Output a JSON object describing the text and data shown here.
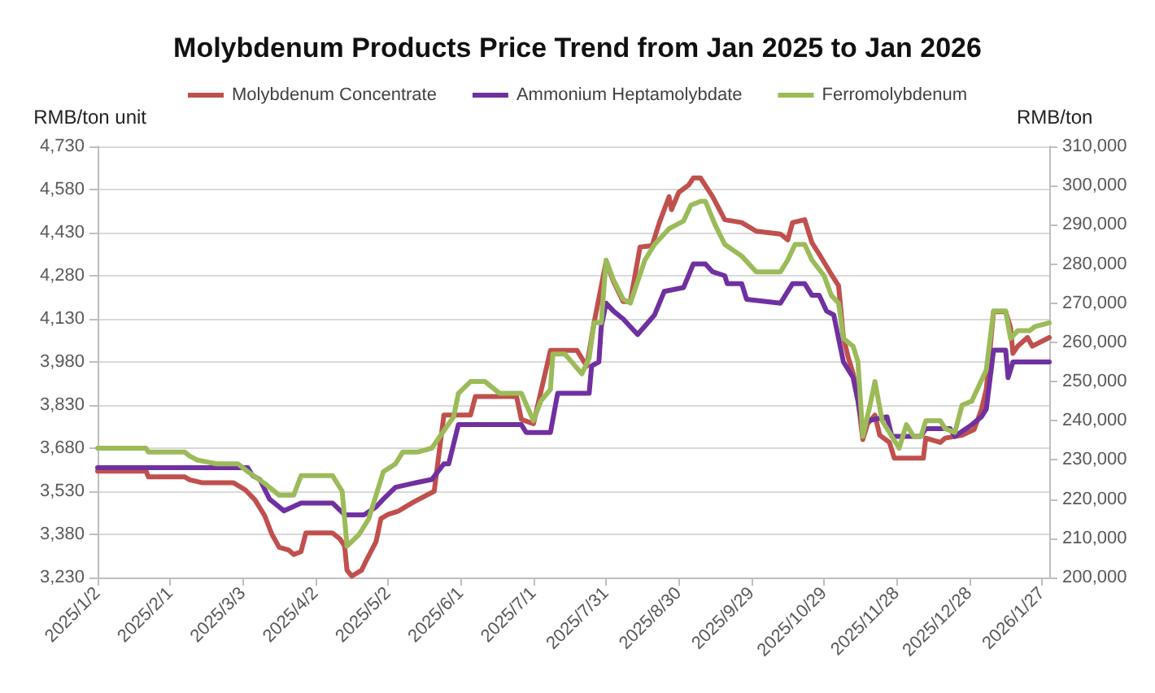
{
  "chart_data": {
    "type": "line",
    "title": "Molybdenum Products Price Trend from Jan 2025 to Jan 2026",
    "ylabel": "RMB/ton unit",
    "y2label": "RMB/ton",
    "xlim": [
      "2025-01-02",
      "2026-01-30"
    ],
    "xticks": [
      {
        "value": "2025-01-02",
        "label": "2025/1/2"
      },
      {
        "value": "2025-02-01",
        "label": "2025/2/1"
      },
      {
        "value": "2025-03-03",
        "label": "2025/3/3"
      },
      {
        "value": "2025-04-02",
        "label": "2025/4/2"
      },
      {
        "value": "2025-05-02",
        "label": "2025/5/2"
      },
      {
        "value": "2025-06-01",
        "label": "2025/6/1"
      },
      {
        "value": "2025-07-01",
        "label": "2025/7/1"
      },
      {
        "value": "2025-07-31",
        "label": "2025/7/31"
      },
      {
        "value": "2025-08-30",
        "label": "2025/8/30"
      },
      {
        "value": "2025-09-29",
        "label": "2025/9/29"
      },
      {
        "value": "2025-10-29",
        "label": "2025/10/29"
      },
      {
        "value": "2025-11-28",
        "label": "2025/11/28"
      },
      {
        "value": "2025-12-28",
        "label": "2025/12/28"
      },
      {
        "value": "2026-01-27",
        "label": "2026/1/27"
      }
    ],
    "ylim": [
      3230,
      4730
    ],
    "yticks": [
      {
        "value": 3230,
        "label": "3,230"
      },
      {
        "value": 3380,
        "label": "3,380"
      },
      {
        "value": 3530,
        "label": "3,530"
      },
      {
        "value": 3680,
        "label": "3,680"
      },
      {
        "value": 3830,
        "label": "3,830"
      },
      {
        "value": 3980,
        "label": "3,980"
      },
      {
        "value": 4130,
        "label": "4,130"
      },
      {
        "value": 4280,
        "label": "4,280"
      },
      {
        "value": 4430,
        "label": "4,430"
      },
      {
        "value": 4580,
        "label": "4,580"
      },
      {
        "value": 4730,
        "label": "4,730"
      }
    ],
    "y2lim": [
      200000,
      310000
    ],
    "y2ticks": [
      {
        "value": 200000,
        "label": "200,000"
      },
      {
        "value": 210000,
        "label": "210,000"
      },
      {
        "value": 220000,
        "label": "220,000"
      },
      {
        "value": 230000,
        "label": "230,000"
      },
      {
        "value": 240000,
        "label": "240,000"
      },
      {
        "value": 250000,
        "label": "250,000"
      },
      {
        "value": 260000,
        "label": "260,000"
      },
      {
        "value": 270000,
        "label": "270,000"
      },
      {
        "value": 280000,
        "label": "280,000"
      },
      {
        "value": 290000,
        "label": "290,000"
      },
      {
        "value": 300000,
        "label": "300,000"
      },
      {
        "value": 310000,
        "label": "310,000"
      }
    ],
    "grid": "y",
    "legend": "top",
    "marker": "none",
    "line_style": "solid",
    "series": [
      {
        "name": "Molybdenum Concentrate",
        "color": "#c0504d",
        "x": [
          "2025-01-02",
          "2025-01-22",
          "2025-01-23",
          "2025-02-07",
          "2025-02-09",
          "2025-02-14",
          "2025-02-27",
          "2025-03-04",
          "2025-03-08",
          "2025-03-12",
          "2025-03-15",
          "2025-03-18",
          "2025-03-22",
          "2025-03-24",
          "2025-03-27",
          "2025-03-29",
          "2025-04-09",
          "2025-04-12",
          "2025-04-14",
          "2025-04-15",
          "2025-04-17",
          "2025-04-21",
          "2025-04-23",
          "2025-04-27",
          "2025-04-29",
          "2025-05-02",
          "2025-05-06",
          "2025-05-09",
          "2025-05-13",
          "2025-05-21",
          "2025-05-25",
          "2025-06-05",
          "2025-06-07",
          "2025-06-24",
          "2025-06-26",
          "2025-07-01",
          "2025-07-08",
          "2025-07-19",
          "2025-07-23",
          "2025-07-26",
          "2025-07-31",
          "2025-08-03",
          "2025-08-07",
          "2025-08-10",
          "2025-08-14",
          "2025-08-19",
          "2025-08-22",
          "2025-08-26",
          "2025-08-27",
          "2025-08-30",
          "2025-09-03",
          "2025-09-05",
          "2025-09-08",
          "2025-09-13",
          "2025-09-18",
          "2025-09-25",
          "2025-10-01",
          "2025-10-11",
          "2025-10-14",
          "2025-10-16",
          "2025-10-21",
          "2025-10-24",
          "2025-10-27",
          "2025-11-01",
          "2025-11-04",
          "2025-11-06",
          "2025-11-08",
          "2025-11-10",
          "2025-11-12",
          "2025-11-14",
          "2025-11-16",
          "2025-11-19",
          "2025-11-21",
          "2025-11-25",
          "2025-11-27",
          "2025-12-09",
          "2025-12-10",
          "2025-12-16",
          "2025-12-18",
          "2025-12-25",
          "2025-12-30",
          "2026-01-02",
          "2026-01-04",
          "2026-01-07",
          "2026-01-12",
          "2026-01-14",
          "2026-01-15",
          "2026-01-17",
          "2026-01-21",
          "2026-01-23",
          "2026-01-30"
        ],
        "values": [
          3600,
          3600,
          3580,
          3580,
          3570,
          3560,
          3560,
          3535,
          3500,
          3445,
          3380,
          3335,
          3325,
          3310,
          3320,
          3385,
          3385,
          3365,
          3340,
          3255,
          3235,
          3255,
          3290,
          3355,
          3435,
          3450,
          3460,
          3475,
          3495,
          3530,
          3795,
          3795,
          3860,
          3860,
          3780,
          3765,
          4020,
          4020,
          3965,
          4115,
          4330,
          4260,
          4190,
          4190,
          4380,
          4385,
          4465,
          4555,
          4510,
          4570,
          4595,
          4620,
          4620,
          4555,
          4475,
          4465,
          4435,
          4425,
          4405,
          4465,
          4475,
          4395,
          4355,
          4285,
          4245,
          4065,
          3995,
          3940,
          3850,
          3710,
          3765,
          3795,
          3725,
          3700,
          3645,
          3645,
          3715,
          3700,
          3715,
          3725,
          3745,
          3815,
          3885,
          4155,
          4155,
          4100,
          4010,
          4035,
          4065,
          4035,
          4065
        ]
      },
      {
        "name": "Ammonium Heptamolybdate",
        "color": "#7030a0",
        "axis": "y2",
        "x": [
          "2025-01-02",
          "2025-03-05",
          "2025-03-07",
          "2025-03-10",
          "2025-03-14",
          "2025-03-20",
          "2025-03-27",
          "2025-04-09",
          "2025-04-14",
          "2025-04-22",
          "2025-04-27",
          "2025-04-30",
          "2025-05-05",
          "2025-05-12",
          "2025-05-20",
          "2025-05-25",
          "2025-05-27",
          "2025-05-31",
          "2025-06-26",
          "2025-06-28",
          "2025-07-08",
          "2025-07-11",
          "2025-07-24",
          "2025-07-25",
          "2025-07-28",
          "2025-07-29",
          "2025-07-31",
          "2025-08-03",
          "2025-08-07",
          "2025-08-13",
          "2025-08-20",
          "2025-08-24",
          "2025-09-01",
          "2025-09-05",
          "2025-09-10",
          "2025-09-13",
          "2025-09-18",
          "2025-09-19",
          "2025-09-25",
          "2025-09-27",
          "2025-10-11",
          "2025-10-16",
          "2025-10-21",
          "2025-10-24",
          "2025-10-27",
          "2025-10-30",
          "2025-11-02",
          "2025-11-06",
          "2025-11-10",
          "2025-11-12",
          "2025-11-14",
          "2025-11-16",
          "2025-11-24",
          "2025-11-26",
          "2025-12-08",
          "2025-12-10",
          "2025-12-20",
          "2025-12-22",
          "2025-12-29",
          "2026-01-02",
          "2026-01-04",
          "2026-01-07",
          "2026-01-12",
          "2026-01-13",
          "2026-01-15",
          "2026-01-30"
        ],
        "values": [
          228000,
          228000,
          226000,
          225000,
          220000,
          217000,
          219000,
          219000,
          216000,
          216000,
          218000,
          220000,
          223000,
          224000,
          225000,
          229000,
          229000,
          239000,
          239000,
          237000,
          237000,
          247000,
          247000,
          254000,
          255000,
          264000,
          270000,
          268000,
          266000,
          262000,
          267000,
          273000,
          274000,
          280000,
          280000,
          278000,
          277000,
          275000,
          275000,
          271000,
          270000,
          275000,
          275000,
          272000,
          272000,
          268000,
          267000,
          255000,
          251000,
          245000,
          238000,
          240000,
          241000,
          236000,
          236000,
          238000,
          238000,
          236000,
          239000,
          241000,
          243000,
          258000,
          258000,
          251000,
          255000,
          255000
        ]
      },
      {
        "name": "Ferromolybdenum",
        "color": "#9bbb59",
        "axis": "y2",
        "x": [
          "2025-01-02",
          "2025-01-22",
          "2025-01-23",
          "2025-02-07",
          "2025-02-09",
          "2025-02-12",
          "2025-02-20",
          "2025-03-01",
          "2025-03-05",
          "2025-03-12",
          "2025-03-18",
          "2025-03-24",
          "2025-03-27",
          "2025-04-09",
          "2025-04-13",
          "2025-04-15",
          "2025-04-20",
          "2025-04-24",
          "2025-04-29",
          "2025-04-30",
          "2025-05-05",
          "2025-05-08",
          "2025-05-14",
          "2025-05-20",
          "2025-05-29",
          "2025-05-31",
          "2025-06-05",
          "2025-06-11",
          "2025-06-17",
          "2025-06-26",
          "2025-07-01",
          "2025-07-04",
          "2025-07-08",
          "2025-07-09",
          "2025-07-14",
          "2025-07-21",
          "2025-07-24",
          "2025-07-26",
          "2025-07-29",
          "2025-07-31",
          "2025-08-03",
          "2025-08-07",
          "2025-08-10",
          "2025-08-16",
          "2025-08-20",
          "2025-08-26",
          "2025-09-01",
          "2025-09-04",
          "2025-09-08",
          "2025-09-10",
          "2025-09-14",
          "2025-09-18",
          "2025-09-25",
          "2025-10-01",
          "2025-10-11",
          "2025-10-14",
          "2025-10-17",
          "2025-10-21",
          "2025-10-24",
          "2025-10-29",
          "2025-11-01",
          "2025-11-04",
          "2025-11-06",
          "2025-11-10",
          "2025-11-12",
          "2025-11-14",
          "2025-11-17",
          "2025-11-19",
          "2025-11-22",
          "2025-11-29",
          "2025-12-02",
          "2025-12-05",
          "2025-12-08",
          "2025-12-10",
          "2025-12-16",
          "2025-12-18",
          "2025-12-22",
          "2025-12-25",
          "2025-12-29",
          "2026-01-04",
          "2026-01-07",
          "2026-01-12",
          "2026-01-14",
          "2026-01-17",
          "2026-01-22",
          "2026-01-24",
          "2026-01-30"
        ],
        "values": [
          233000,
          233000,
          232000,
          232000,
          231000,
          230000,
          229000,
          229000,
          227000,
          224000,
          221000,
          221000,
          226000,
          226000,
          222000,
          208000,
          211000,
          215000,
          225000,
          227000,
          229000,
          232000,
          232000,
          233000,
          241000,
          247000,
          250000,
          250000,
          247000,
          247000,
          240000,
          245000,
          248000,
          257000,
          257000,
          252000,
          256000,
          265000,
          265000,
          281000,
          276000,
          271000,
          270000,
          281000,
          285000,
          289000,
          291000,
          295000,
          296000,
          296000,
          290000,
          285000,
          282000,
          278000,
          278000,
          281000,
          285000,
          285000,
          281000,
          277000,
          272000,
          270000,
          261000,
          259000,
          255000,
          236000,
          244000,
          250000,
          240000,
          233000,
          239000,
          236000,
          236000,
          240000,
          240000,
          238000,
          237000,
          244000,
          245000,
          253000,
          268000,
          268000,
          261000,
          263000,
          263000,
          264000,
          265000
        ]
      }
    ]
  }
}
